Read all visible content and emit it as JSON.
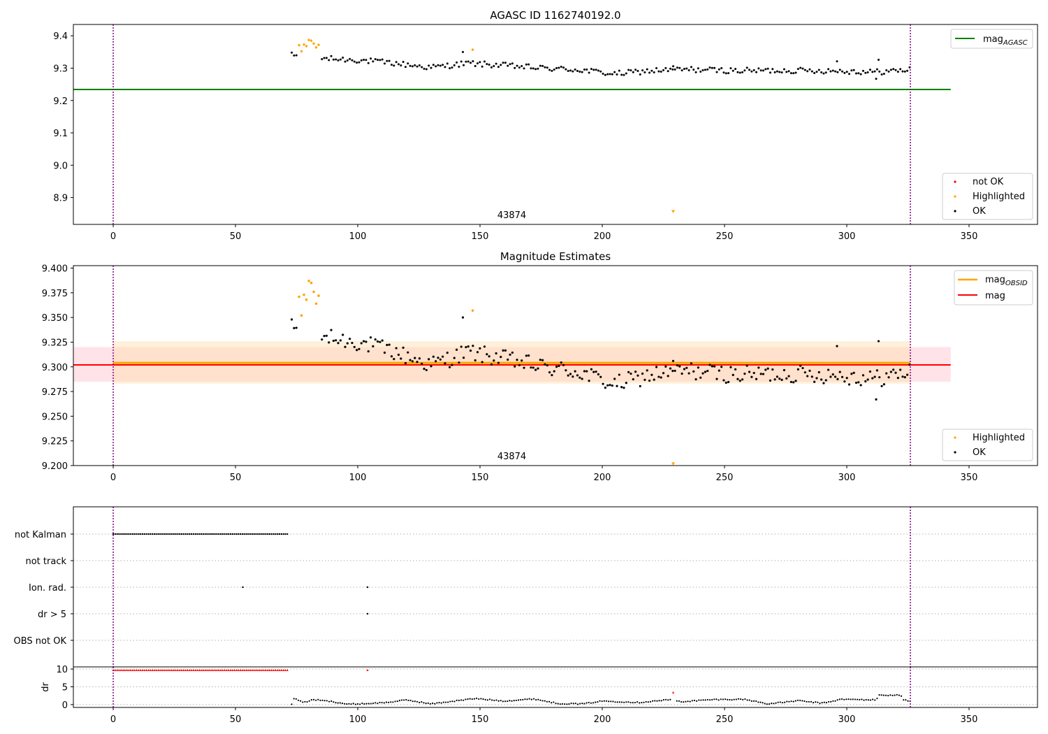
{
  "figure": {
    "panel1_title": "AGASC ID 1162740192.0",
    "panel2_title": "Magnitude Estimates",
    "obsid_label": "43874"
  },
  "legends": {
    "mag_agasc": "mag",
    "mag_agasc_sub": "AGASC",
    "mag_obsid": "mag",
    "mag_obsid_sub": "OBSID",
    "mag": "mag",
    "not_ok": "not OK",
    "highlighted": "Highlighted",
    "ok": "OK"
  },
  "colors": {
    "ok": "#000000",
    "highlighted": "#ffa500",
    "not_ok": "#ff0000",
    "mag_agasc_line": "#008000",
    "mag_line": "#ff0000",
    "mag_obsid_line": "#ffa500",
    "obs_boundary": "#800080",
    "mag_band": "#ffc0cb",
    "obsid_band": "#ffdead"
  },
  "chart_data": [
    {
      "type": "scatter",
      "title": "AGASC ID 1162740192.0",
      "xlim": [
        -16.3,
        378
      ],
      "ylim": [
        8.817,
        9.435
      ],
      "xticks": [
        0,
        50,
        100,
        150,
        200,
        250,
        300,
        350
      ],
      "yticks": [
        8.9,
        9.0,
        9.1,
        9.2,
        9.3,
        9.4
      ],
      "ytick_labels": [
        "8.9",
        "9.0",
        "9.1",
        "9.2",
        "9.3",
        "9.4"
      ],
      "mag_agasc": 9.234,
      "mag_agasc_xrange": [
        -16.3,
        342.5
      ],
      "obs_boundaries": [
        0,
        326
      ],
      "annotation": {
        "text": "43874",
        "x": 163,
        "y": 8.83
      },
      "legend_position": "upper right / lower right",
      "series": [
        {
          "name": "Highlighted",
          "marker": "down-triangle",
          "points": [
            [
              229,
              8.857
            ]
          ]
        }
      ]
    },
    {
      "type": "scatter",
      "title": "Magnitude Estimates",
      "xlim": [
        -16.3,
        378
      ],
      "ylim": [
        9.2,
        9.4025
      ],
      "xticks": [
        0,
        50,
        100,
        150,
        200,
        250,
        300,
        350
      ],
      "yticks": [
        9.2,
        9.225,
        9.25,
        9.275,
        9.3,
        9.325,
        9.35,
        9.375,
        9.4
      ],
      "ytick_labels": [
        "9.200",
        "9.225",
        "9.250",
        "9.275",
        "9.300",
        "9.325",
        "9.350",
        "9.375",
        "9.400"
      ],
      "mag": 9.302,
      "mag_band": [
        9.285,
        9.32
      ],
      "mag_xrange": [
        -16.3,
        342.5
      ],
      "mag_obsid": 9.304,
      "mag_obsid_band": [
        9.283,
        9.326
      ],
      "mag_obsid_xrange": [
        0,
        326
      ],
      "obs_boundaries": [
        0,
        326
      ],
      "annotation": {
        "text": "43874",
        "x": 163,
        "y": 9.203
      },
      "legend_position": "upper right / lower right",
      "series": [
        {
          "name": "Highlighted",
          "marker": "down-triangle",
          "points": [
            [
              229,
              9.2015
            ]
          ]
        }
      ]
    },
    {
      "type": "scatter",
      "xlim": [
        -16.3,
        378
      ],
      "categories": [
        "not Kalman",
        "not track",
        "Ion. rad.",
        "dr > 5",
        "OBS not OK"
      ],
      "obs_boundaries": [
        0,
        326
      ],
      "flags": {
        "not_kalman_range": [
          0,
          71.5,
          0.8
        ],
        "ion_rad": [
          53,
          104
        ],
        "dr_gt_5": [
          104
        ]
      },
      "grid": "horizontal dotted"
    },
    {
      "type": "scatter",
      "ylabel": "dr",
      "xlim": [
        -16.3,
        378
      ],
      "ylim": [
        -0.8,
        10.6
      ],
      "xticks": [
        0,
        50,
        100,
        150,
        200,
        250,
        300,
        350
      ],
      "yticks": [
        0,
        5,
        10
      ],
      "obs_boundaries": [
        0,
        326
      ],
      "not_ok_dr": 9.7,
      "not_ok_extra": [
        [
          104,
          9.7
        ],
        [
          229,
          3.4
        ]
      ],
      "grid": "horizontal dotted"
    }
  ]
}
